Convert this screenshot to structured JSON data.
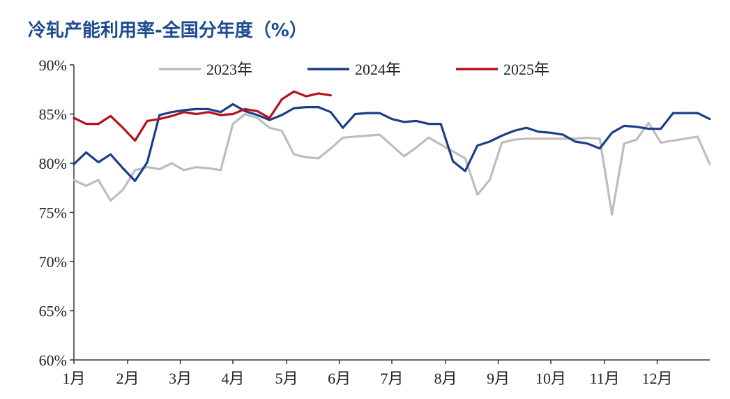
{
  "chart_data": {
    "type": "line",
    "title": "冷轧产能利用率-全国分年度（%）",
    "xlabel": "",
    "ylabel": "",
    "ylim": [
      60,
      90
    ],
    "xlim": [
      1,
      53
    ],
    "y_ticks": [
      "60%",
      "65%",
      "70%",
      "75%",
      "80%",
      "85%",
      "90%"
    ],
    "y_tick_values": [
      60,
      65,
      70,
      75,
      80,
      85,
      90
    ],
    "x_ticks": [
      "1月",
      "2月",
      "3月",
      "4月",
      "5月",
      "6月",
      "7月",
      "8月",
      "9月",
      "10月",
      "11月",
      "12月"
    ],
    "x_tick_weeks": [
      1,
      5.4,
      9.7,
      14,
      18.4,
      22.7,
      27,
      31.4,
      35.7,
      40,
      44.4,
      48.7
    ],
    "legend_position": "top",
    "grid": false,
    "series": [
      {
        "name": "2023年",
        "color": "#bdbdbd",
        "x": [
          1,
          2,
          3,
          4,
          5,
          6,
          7,
          8,
          9,
          10,
          11,
          12,
          13,
          14,
          15,
          16,
          17,
          18,
          19,
          20,
          21,
          22,
          23,
          24,
          25,
          26,
          27,
          28,
          29,
          30,
          31,
          32,
          33,
          34,
          35,
          36,
          37,
          38,
          39,
          40,
          41,
          42,
          43,
          44,
          45,
          46,
          47,
          48,
          49,
          50,
          51,
          52,
          53
        ],
        "values": [
          78.3,
          77.7,
          78.3,
          76.2,
          77.3,
          79.3,
          79.6,
          79.4,
          80.0,
          79.3,
          79.6,
          79.5,
          79.3,
          84.0,
          85.0,
          84.6,
          83.6,
          83.3,
          80.9,
          80.6,
          80.5,
          81.5,
          82.6,
          82.7,
          82.8,
          82.9,
          81.8,
          80.7,
          81.6,
          82.6,
          81.9,
          81.2,
          80.5,
          76.8,
          78.3,
          82.1,
          82.4,
          82.5,
          82.5,
          82.5,
          82.5,
          82.5,
          82.6,
          82.5,
          74.8,
          82.0,
          82.4,
          84.1,
          82.1,
          82.3,
          82.5,
          82.7,
          79.9
        ]
      },
      {
        "name": "2024年",
        "color": "#1a3e87",
        "x": [
          1,
          2,
          3,
          4,
          5,
          6,
          7,
          8,
          9,
          10,
          11,
          12,
          13,
          14,
          15,
          16,
          17,
          18,
          19,
          20,
          21,
          22,
          23,
          24,
          25,
          26,
          27,
          28,
          29,
          30,
          31,
          32,
          33,
          34,
          35,
          36,
          37,
          38,
          39,
          40,
          41,
          42,
          43,
          44,
          45,
          46,
          47,
          48,
          49,
          50,
          51,
          52,
          53
        ],
        "values": [
          79.9,
          81.1,
          80.1,
          80.9,
          79.5,
          78.2,
          80.1,
          84.9,
          85.2,
          85.4,
          85.5,
          85.5,
          85.2,
          86.0,
          85.3,
          84.9,
          84.4,
          84.9,
          85.6,
          85.7,
          85.7,
          85.2,
          83.6,
          85.0,
          85.1,
          85.1,
          84.5,
          84.2,
          84.3,
          84.0,
          84.0,
          80.2,
          79.2,
          81.8,
          82.2,
          82.8,
          83.3,
          83.6,
          83.2,
          83.1,
          82.9,
          82.2,
          82.0,
          81.5,
          83.1,
          83.8,
          83.7,
          83.5,
          83.5,
          85.1,
          85.1,
          85.1,
          84.5
        ]
      },
      {
        "name": "2025年",
        "color": "#b5121b",
        "x": [
          1,
          2,
          3,
          4,
          5,
          6,
          7,
          8,
          9,
          10,
          11,
          12,
          13,
          14,
          15,
          16,
          17,
          18,
          19,
          20,
          21,
          22
        ],
        "values": [
          84.6,
          84.0,
          84.0,
          84.8,
          83.6,
          82.3,
          84.3,
          84.5,
          84.8,
          85.2,
          85.0,
          85.2,
          84.9,
          85.0,
          85.5,
          85.3,
          84.6,
          86.5,
          87.3,
          86.8,
          87.1,
          86.9
        ]
      }
    ]
  }
}
